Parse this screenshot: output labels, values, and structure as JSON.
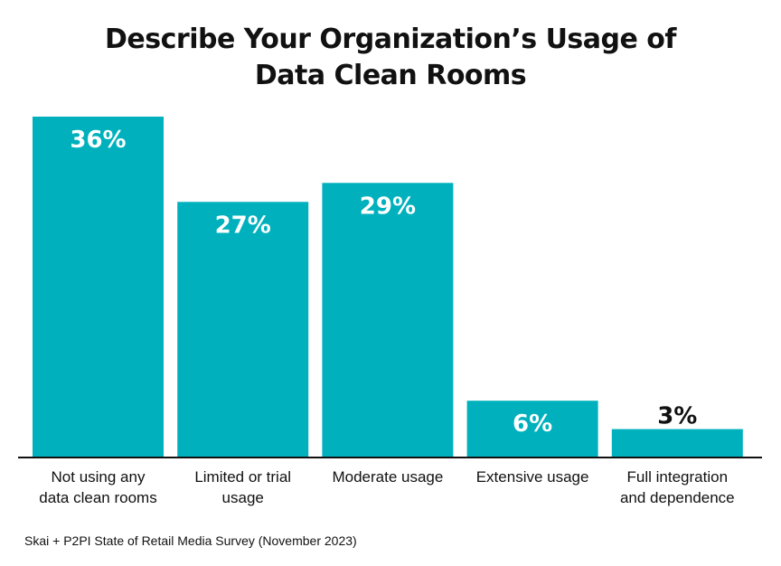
{
  "title_lines": [
    "Describe Your Organization’s Usage of",
    "Data Clean Rooms"
  ],
  "source": "Skai + P2PI State of Retail Media Survey (November 2023)",
  "colors": {
    "bar": "#00b1bd",
    "label_inside": "#ffffff",
    "label_outside": "#111111",
    "axis": "#111111"
  },
  "chart_data": {
    "type": "bar",
    "title": "Describe Your Organization’s Usage of Data Clean Rooms",
    "categories": [
      [
        "Not using any",
        "data clean rooms"
      ],
      [
        "Limited or trial",
        "usage"
      ],
      [
        "Moderate usage"
      ],
      [
        "Extensive usage"
      ],
      [
        "Full integration",
        "and dependence"
      ]
    ],
    "values": [
      36,
      27,
      29,
      6,
      3
    ],
    "value_labels": [
      "36%",
      "27%",
      "29%",
      "6%",
      "3%"
    ],
    "xlabel": "",
    "ylabel": "",
    "ylim": [
      0,
      36
    ],
    "grid": false
  }
}
